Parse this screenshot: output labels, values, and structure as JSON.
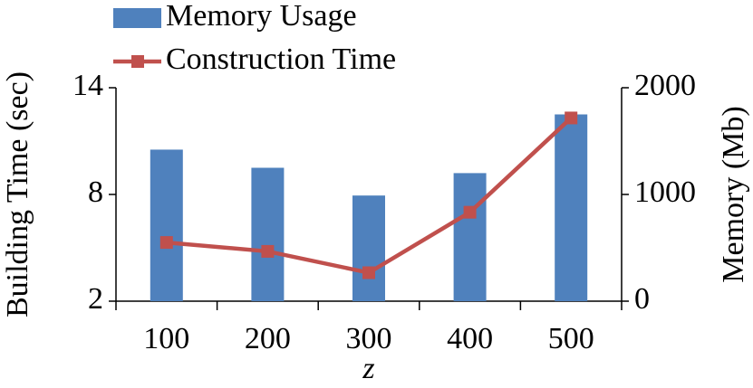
{
  "chart_data": {
    "type": "bar",
    "categories": [
      "100",
      "200",
      "300",
      "400",
      "500"
    ],
    "xlabel": "z",
    "ylabel": "Building Time (sec)",
    "y2label": "Memory (Mb)",
    "ylim": [
      2,
      14
    ],
    "yticks": [
      2,
      8,
      14
    ],
    "y2lim": [
      0,
      2000
    ],
    "y2ticks": [
      0,
      1000,
      2000
    ],
    "legend": "top",
    "series": [
      {
        "name": "Memory Usage",
        "type": "bar",
        "axis": "y2",
        "color": "#4f81bd",
        "values": [
          1420,
          1250,
          990,
          1200,
          1750
        ]
      },
      {
        "name": "Construction Time",
        "type": "line",
        "axis": "y",
        "color": "#c0504d",
        "values": [
          5.3,
          4.8,
          3.6,
          7.0,
          12.3
        ]
      }
    ]
  }
}
